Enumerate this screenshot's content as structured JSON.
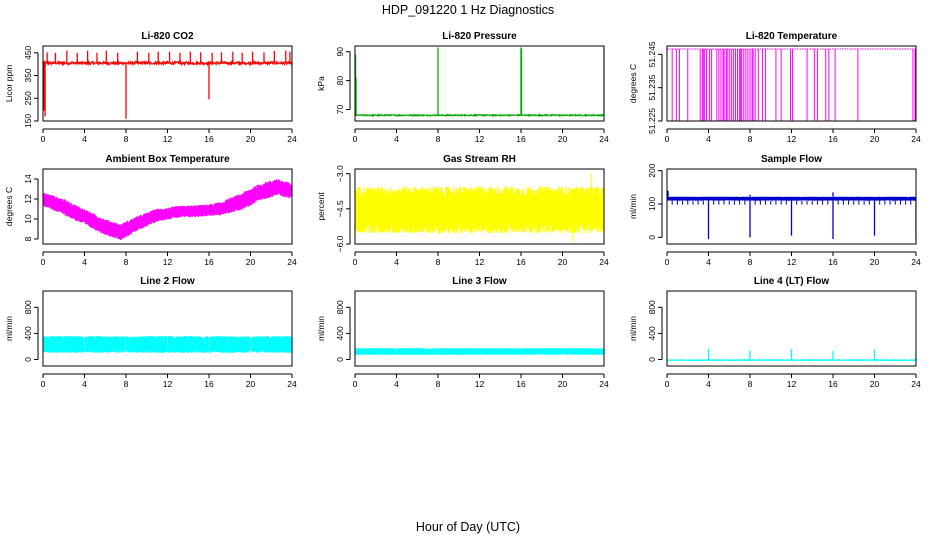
{
  "figure": {
    "title": "HDP_091220  1 Hz Diagnostics",
    "xlabel": "Hour of Day (UTC)"
  },
  "chart_data": [
    {
      "type": "line",
      "title": "Li-820 CO2",
      "ylabel": "Licor ppm",
      "xlim": [
        0,
        24
      ],
      "ylim": [
        150,
        480
      ],
      "x_ticks": [
        0,
        4,
        8,
        12,
        16,
        20,
        24
      ],
      "y_ticks": [
        150,
        250,
        350,
        450
      ],
      "color": "#ff0000",
      "baseline": 405,
      "noise": 6,
      "spikes_up": [
        [
          0.4,
          452
        ],
        [
          1.2,
          450
        ],
        [
          2.3,
          460
        ],
        [
          3.3,
          450
        ],
        [
          4.3,
          460
        ],
        [
          5.2,
          450
        ],
        [
          6.1,
          460
        ],
        [
          7.2,
          450
        ],
        [
          9.1,
          455
        ],
        [
          10.2,
          450
        ],
        [
          11.1,
          455
        ],
        [
          12.2,
          455
        ],
        [
          13.2,
          450
        ],
        [
          14.2,
          455
        ],
        [
          15.2,
          452
        ],
        [
          16.3,
          450
        ],
        [
          17.2,
          452
        ],
        [
          18.3,
          455
        ],
        [
          19.2,
          450
        ],
        [
          20.2,
          455
        ],
        [
          21.3,
          452
        ],
        [
          22.3,
          458
        ],
        [
          23.4,
          460
        ],
        [
          23.8,
          455
        ]
      ],
      "spikes_down": [
        [
          0.1,
          195
        ],
        [
          0.2,
          170
        ],
        [
          8.0,
          160
        ],
        [
          16.0,
          245
        ],
        [
          24.0,
          385
        ]
      ]
    },
    {
      "type": "line",
      "title": "Li-820 Pressure",
      "ylabel": "kPa",
      "xlim": [
        0,
        24
      ],
      "ylim": [
        66,
        92
      ],
      "x_ticks": [
        0,
        4,
        8,
        12,
        16,
        20,
        24
      ],
      "y_ticks": [
        70,
        80,
        90
      ],
      "color": "#00a800",
      "baseline": 68.0,
      "noise": 0.2,
      "spikes_up": [
        [
          0.05,
          89
        ],
        [
          0.1,
          81
        ],
        [
          8.0,
          91.5
        ],
        [
          16.0,
          91.5
        ],
        [
          16.05,
          91
        ],
        [
          24.0,
          91.5
        ]
      ],
      "spikes_down": []
    },
    {
      "type": "line",
      "title": "Li-820 Temperature",
      "ylabel": "degrees C",
      "xlim": [
        0,
        24
      ],
      "ylim": [
        51.225,
        51.2475
      ],
      "x_ticks": [
        0,
        4,
        8,
        12,
        16,
        20,
        24
      ],
      "y_ticks": [
        51.225,
        51.235,
        51.245
      ],
      "y_tick_labels": [
        "51.225",
        "51.235",
        "51.245"
      ],
      "color": "#ff00ff",
      "baseline": 51.2466,
      "noise": 0,
      "drop_value": 51.225,
      "drops": [
        0.5,
        0.9,
        1.2,
        2.0,
        3.2,
        3.4,
        3.5,
        3.6,
        3.8,
        4.1,
        4.3,
        4.8,
        5.0,
        5.2,
        5.4,
        5.5,
        5.7,
        5.8,
        6.0,
        6.2,
        6.4,
        6.6,
        6.8,
        7.0,
        7.1,
        7.2,
        7.4,
        7.6,
        7.8,
        8.0,
        8.2,
        8.3,
        8.5,
        8.8,
        9.2,
        9.5,
        10.5,
        11.0,
        11.9,
        12.1,
        13.5,
        14.2,
        14.5,
        15.3,
        15.6,
        16.2,
        18.4,
        23.7,
        23.9
      ]
    },
    {
      "type": "area",
      "title": "Ambient Box Temperature",
      "ylabel": "degrees C",
      "xlim": [
        0,
        24
      ],
      "ylim": [
        7.5,
        15
      ],
      "x_ticks": [
        0,
        4,
        8,
        12,
        16,
        20,
        24
      ],
      "y_ticks": [
        8,
        10,
        12,
        14
      ],
      "color": "#ff00ff",
      "center": [
        [
          0,
          12.0
        ],
        [
          2,
          11.2
        ],
        [
          4,
          10.2
        ],
        [
          6,
          9.2
        ],
        [
          7.5,
          8.7
        ],
        [
          9,
          9.5
        ],
        [
          11,
          10.4
        ],
        [
          13,
          10.7
        ],
        [
          15,
          10.8
        ],
        [
          17,
          11.0
        ],
        [
          19,
          11.7
        ],
        [
          21,
          12.7
        ],
        [
          22.5,
          13.2
        ],
        [
          24,
          12.8
        ]
      ],
      "halfwidth": [
        [
          0,
          0.7
        ],
        [
          2,
          0.8
        ],
        [
          4,
          0.8
        ],
        [
          8,
          0.8
        ],
        [
          12,
          0.6
        ],
        [
          16,
          0.6
        ],
        [
          20,
          0.9
        ],
        [
          24,
          0.8
        ]
      ]
    },
    {
      "type": "area",
      "title": "Gas Stream RH",
      "ylabel": "percent",
      "xlim": [
        0,
        24
      ],
      "ylim": [
        -6,
        -2.8
      ],
      "x_ticks": [
        0,
        4,
        8,
        12,
        16,
        20,
        24
      ],
      "y_ticks": [
        -6.0,
        -4.5,
        -3.0
      ],
      "y_tick_labels": [
        "−6.0",
        "−4.5",
        "−3.0"
      ],
      "color": "#ffff00",
      "center": [
        [
          0,
          -4.55
        ],
        [
          24,
          -4.55
        ]
      ],
      "halfwidth": [
        [
          0,
          1.0
        ],
        [
          24,
          1.0
        ]
      ],
      "extremes": [
        -5.9,
        -3.0
      ]
    },
    {
      "type": "line",
      "title": "Sample Flow",
      "ylabel": "ml/min",
      "xlim": [
        0,
        24
      ],
      "ylim": [
        -20,
        205
      ],
      "x_ticks": [
        0,
        4,
        8,
        12,
        16,
        20,
        24
      ],
      "y_ticks": [
        0,
        100,
        200
      ],
      "color": "#0000cc",
      "band": [
        110,
        122
      ],
      "spikes_up": [
        [
          0.1,
          140
        ],
        [
          8.0,
          128
        ],
        [
          16.0,
          135
        ]
      ],
      "spikes_down": [
        [
          4.0,
          -5
        ],
        [
          8.0,
          0
        ],
        [
          12.0,
          5
        ],
        [
          16.0,
          -5
        ],
        [
          20.0,
          5
        ],
        [
          24.0,
          -5
        ]
      ]
    },
    {
      "type": "area",
      "title": "Line 2 Flow",
      "ylabel": "ml/min",
      "xlim": [
        0,
        24
      ],
      "ylim": [
        -100,
        1050
      ],
      "x_ticks": [
        0,
        4,
        8,
        12,
        16,
        20,
        24
      ],
      "y_ticks": [
        0,
        400,
        800
      ],
      "color": "#00ffff",
      "band": [
        100,
        360
      ],
      "gaps": [
        4,
        8,
        12,
        16,
        20
      ]
    },
    {
      "type": "area",
      "title": "Line 3 Flow",
      "ylabel": "ml/min",
      "xlim": [
        0,
        24
      ],
      "ylim": [
        -100,
        1050
      ],
      "x_ticks": [
        0,
        4,
        8,
        12,
        16,
        20,
        24
      ],
      "y_ticks": [
        0,
        400,
        800
      ],
      "color": "#00ffff",
      "band": [
        70,
        175
      ],
      "gaps": [
        4,
        8,
        12,
        16,
        20
      ]
    },
    {
      "type": "line",
      "title": "Line 4 (LT) Flow",
      "ylabel": "ml/min",
      "xlim": [
        0,
        24
      ],
      "ylim": [
        -100,
        1050
      ],
      "x_ticks": [
        0,
        4,
        8,
        12,
        16,
        20,
        24
      ],
      "y_ticks": [
        0,
        400,
        800
      ],
      "color": "#00ffff",
      "baseline": -10,
      "noise": 6,
      "spikes_up": [
        [
          4.0,
          160
        ],
        [
          8.0,
          140
        ],
        [
          12.0,
          160
        ],
        [
          16.0,
          130
        ],
        [
          20.0,
          155
        ],
        [
          24.0,
          120
        ]
      ],
      "spikes_down": []
    }
  ]
}
